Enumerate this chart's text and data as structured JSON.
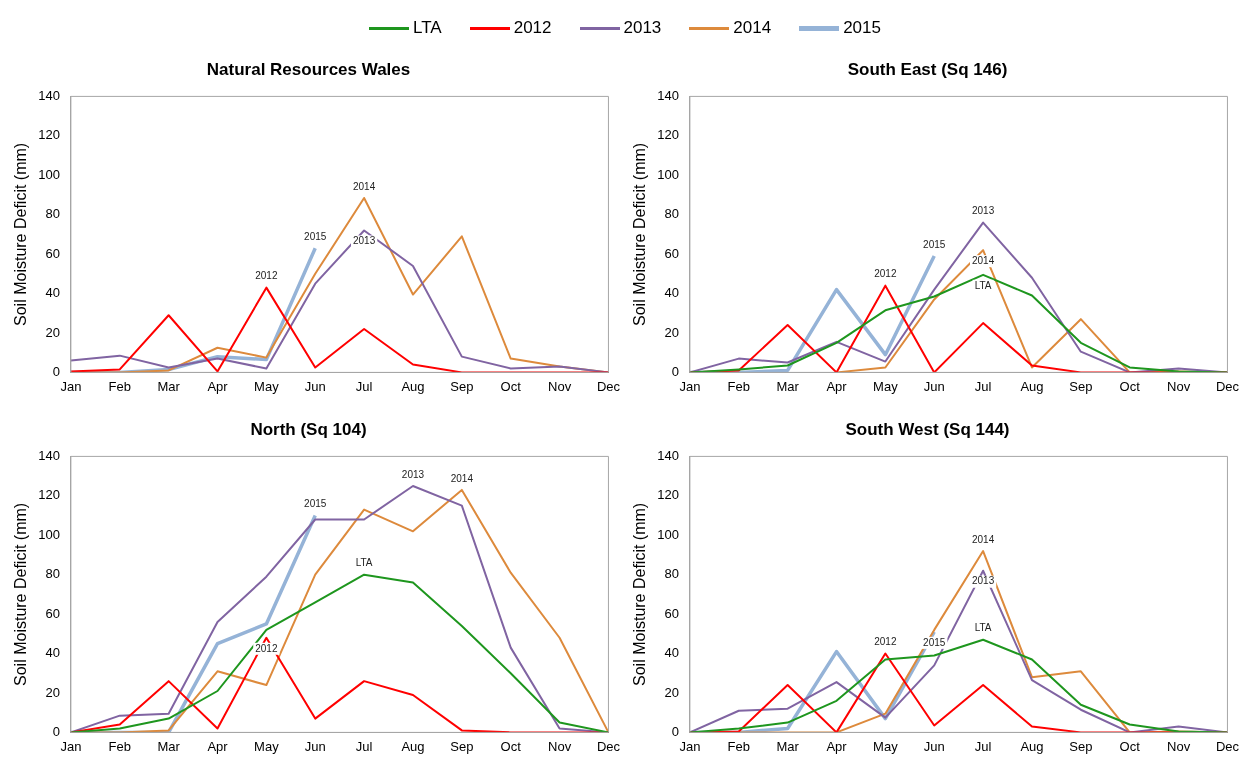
{
  "chart_data": [
    {
      "type": "line",
      "title": "Natural Resources Wales",
      "ylabel": "Soil Moisture Deficit (mm)",
      "categories": [
        "Jan",
        "Feb",
        "Mar",
        "Apr",
        "May",
        "Jun",
        "Jul",
        "Aug",
        "Sep",
        "Oct",
        "Nov",
        "Dec"
      ],
      "ylim": [
        0,
        140
      ],
      "yticks": [
        0,
        20,
        40,
        60,
        80,
        100,
        120,
        140
      ],
      "marker": "none",
      "line_style": "solid",
      "legend": "top",
      "series": [
        {
          "name": "2012",
          "color": "#ff0000",
          "values": [
            0.5,
            1.5,
            29,
            0.5,
            43,
            2.5,
            22,
            4,
            0,
            0,
            0,
            0
          ]
        },
        {
          "name": "2013",
          "color": "#8064a2",
          "values": [
            6,
            8.5,
            2.5,
            7,
            2,
            45,
            72,
            54,
            8,
            2,
            3,
            0
          ]
        },
        {
          "name": "2014",
          "color": "#dd8a3c",
          "values": [
            0,
            0,
            1,
            12.5,
            7.5,
            50,
            88.5,
            39.5,
            69,
            7,
            3,
            0
          ]
        },
        {
          "name": "2015",
          "color": "#95b3d7",
          "values": [
            0,
            0,
            1.5,
            8,
            6.5,
            63,
            null,
            null,
            null,
            null,
            null,
            null
          ]
        }
      ]
    },
    {
      "type": "line",
      "title": "South East (Sq 146)",
      "ylabel": "Soil Moisture Deficit (mm)",
      "categories": [
        "Jan",
        "Feb",
        "Mar",
        "Apr",
        "May",
        "Jun",
        "Jul",
        "Aug",
        "Sep",
        "Oct",
        "Nov",
        "Dec"
      ],
      "ylim": [
        0,
        140
      ],
      "yticks": [
        0,
        20,
        40,
        60,
        80,
        100,
        120,
        140
      ],
      "marker": "none",
      "line_style": "solid",
      "series": [
        {
          "name": "LTA",
          "color": "#1e961e",
          "values": [
            0,
            1.5,
            3.5,
            15,
            31.5,
            38.5,
            49.5,
            39,
            15,
            2.5,
            0.5,
            0
          ]
        },
        {
          "name": "2012",
          "color": "#ff0000",
          "values": [
            0,
            1,
            24,
            0,
            44,
            0,
            25,
            3.5,
            0,
            0,
            0,
            0
          ]
        },
        {
          "name": "2013",
          "color": "#8064a2",
          "values": [
            0,
            7,
            5,
            15.5,
            5.5,
            42,
            76,
            48,
            10.5,
            0,
            2,
            0
          ]
        },
        {
          "name": "2014",
          "color": "#dd8a3c",
          "values": [
            null,
            null,
            null,
            0,
            2.5,
            37,
            62,
            2.5,
            27,
            0,
            0.5,
            0
          ]
        },
        {
          "name": "2015",
          "color": "#95b3d7",
          "values": [
            0,
            0,
            1,
            42,
            9,
            59,
            null,
            null,
            null,
            null,
            null,
            null
          ]
        }
      ]
    },
    {
      "type": "line",
      "title": "North (Sq 104)",
      "ylabel": "Soil Moisture Deficit (mm)",
      "categories": [
        "Jan",
        "Feb",
        "Mar",
        "Apr",
        "May",
        "Jun",
        "Jul",
        "Aug",
        "Sep",
        "Oct",
        "Nov",
        "Dec"
      ],
      "ylim": [
        0,
        140
      ],
      "yticks": [
        0,
        20,
        40,
        60,
        80,
        100,
        120,
        140
      ],
      "marker": "none",
      "line_style": "solid",
      "series": [
        {
          "name": "LTA",
          "color": "#1e961e",
          "values": [
            0,
            2,
            7,
            21,
            52,
            66,
            80,
            76,
            54,
            30,
            5,
            0
          ]
        },
        {
          "name": "2012",
          "color": "#ff0000",
          "values": [
            0,
            4,
            26,
            2,
            48,
            7,
            26,
            19,
            1,
            0,
            0,
            0
          ]
        },
        {
          "name": "2013",
          "color": "#8064a2",
          "values": [
            0,
            8.5,
            9.5,
            56,
            79,
            108,
            108,
            125,
            115,
            43,
            2,
            0
          ]
        },
        {
          "name": "2014",
          "color": "#dd8a3c",
          "values": [
            0,
            0,
            1,
            31,
            24,
            80,
            113,
            102,
            123,
            81,
            48,
            0
          ]
        },
        {
          "name": "2015",
          "color": "#95b3d7",
          "values": [
            0,
            0,
            0,
            45,
            55,
            110,
            null,
            null,
            null,
            null,
            null,
            null
          ]
        }
      ]
    },
    {
      "type": "line",
      "title": "South West (Sq 144)",
      "ylabel": "Soil Moisture Deficit (mm)",
      "categories": [
        "Jan",
        "Feb",
        "Mar",
        "Apr",
        "May",
        "Jun",
        "Jul",
        "Aug",
        "Sep",
        "Oct",
        "Nov",
        "Dec"
      ],
      "ylim": [
        0,
        140
      ],
      "yticks": [
        0,
        20,
        40,
        60,
        80,
        100,
        120,
        140
      ],
      "marker": "none",
      "line_style": "solid",
      "series": [
        {
          "name": "LTA",
          "color": "#1e961e",
          "values": [
            0,
            2,
            5,
            16,
            37,
            39,
            47,
            37,
            14,
            4,
            0.5,
            0
          ]
        },
        {
          "name": "2012",
          "color": "#ff0000",
          "values": [
            0,
            0.5,
            24,
            0,
            40,
            3.5,
            24,
            3,
            0,
            0,
            0,
            0
          ]
        },
        {
          "name": "2013",
          "color": "#8064a2",
          "values": [
            0,
            11,
            12,
            25.5,
            7.5,
            34,
            82,
            26.5,
            11.5,
            0,
            3,
            0
          ]
        },
        {
          "name": "2014",
          "color": "#dd8a3c",
          "values": [
            0,
            0,
            0,
            0,
            9.5,
            52,
            92,
            28,
            31,
            0,
            0.5,
            0
          ]
        },
        {
          "name": "2015",
          "color": "#95b3d7",
          "values": [
            0,
            0,
            2,
            41,
            7,
            51,
            null,
            null,
            null,
            null,
            null,
            null
          ]
        }
      ]
    }
  ]
}
